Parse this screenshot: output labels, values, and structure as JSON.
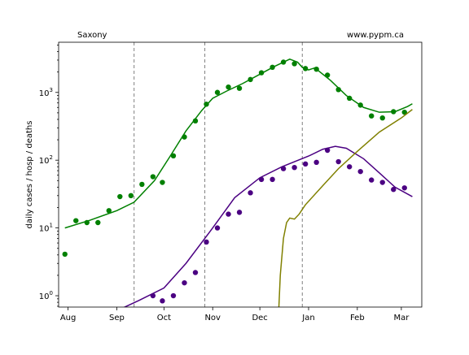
{
  "chart_data": {
    "type": "scatter",
    "title_left": "Saxony",
    "title_right": "www.pypm.ca",
    "ylabel": "daily cases / hosp / deaths",
    "xlabel": "",
    "y_scale": "log",
    "ylim": [
      0.68,
      5500
    ],
    "xlim": [
      "2020-07-26",
      "2021-03-14"
    ],
    "x_ticks": [
      {
        "date": "2020-08-01",
        "label": "Aug"
      },
      {
        "date": "2020-09-01",
        "label": "Sep"
      },
      {
        "date": "2020-10-01",
        "label": "Oct"
      },
      {
        "date": "2020-11-01",
        "label": "Nov"
      },
      {
        "date": "2020-12-01",
        "label": "Dec"
      },
      {
        "date": "2021-01-01",
        "label": "Jan"
      },
      {
        "date": "2021-02-01",
        "label": "Feb"
      },
      {
        "date": "2021-03-01",
        "label": "Mar"
      }
    ],
    "y_ticks": [
      {
        "value": 1,
        "label": "10^0"
      },
      {
        "value": 10,
        "label": "10^1"
      },
      {
        "value": 100,
        "label": "10^2"
      },
      {
        "value": 1000,
        "label": "10^3"
      }
    ],
    "vlines": [
      "2020-09-12",
      "2020-10-27",
      "2020-12-28"
    ],
    "grid": false,
    "series": [
      {
        "color": "#008000",
        "points": [
          [
            "2020-07-30",
            4.1
          ],
          [
            "2020-08-06",
            12.8
          ],
          [
            "2020-08-13",
            12.0
          ],
          [
            "2020-08-20",
            12.0
          ],
          [
            "2020-08-27",
            18.0
          ],
          [
            "2020-09-03",
            29.0
          ],
          [
            "2020-09-10",
            30.0
          ],
          [
            "2020-09-17",
            44.0
          ],
          [
            "2020-09-24",
            57.0
          ],
          [
            "2020-09-30",
            47.0
          ],
          [
            "2020-10-07",
            116.0
          ],
          [
            "2020-10-14",
            220.0
          ],
          [
            "2020-10-21",
            380.0
          ],
          [
            "2020-10-28",
            670.0
          ],
          [
            "2020-11-04",
            1000.0
          ],
          [
            "2020-11-11",
            1200.0
          ],
          [
            "2020-11-18",
            1150.0
          ],
          [
            "2020-11-25",
            1550.0
          ],
          [
            "2020-12-02",
            1950.0
          ],
          [
            "2020-12-09",
            2350.0
          ],
          [
            "2020-12-16",
            2800.0
          ],
          [
            "2020-12-23",
            2650.0
          ],
          [
            "2020-12-30",
            2250.0
          ],
          [
            "2021-01-06",
            2200.0
          ],
          [
            "2021-01-13",
            1800.0
          ],
          [
            "2021-01-20",
            1100.0
          ],
          [
            "2021-01-27",
            820.0
          ],
          [
            "2021-02-03",
            650.0
          ],
          [
            "2021-02-10",
            450.0
          ],
          [
            "2021-02-17",
            420.0
          ],
          [
            "2021-02-24",
            520.0
          ],
          [
            "2021-03-03",
            510.0
          ]
        ],
        "curve": [
          [
            "2020-07-30",
            10.0
          ],
          [
            "2020-08-15",
            13.0
          ],
          [
            "2020-09-01",
            18.0
          ],
          [
            "2020-09-12",
            24.0
          ],
          [
            "2020-09-25",
            50.0
          ],
          [
            "2020-10-05",
            115.0
          ],
          [
            "2020-10-15",
            270.0
          ],
          [
            "2020-10-25",
            540.0
          ],
          [
            "2020-11-01",
            820.0
          ],
          [
            "2020-11-10",
            1050.0
          ],
          [
            "2020-11-20",
            1350.0
          ],
          [
            "2020-12-01",
            1850.0
          ],
          [
            "2020-12-10",
            2400.0
          ],
          [
            "2020-12-20",
            3100.0
          ],
          [
            "2020-12-25",
            2800.0
          ],
          [
            "2020-12-28",
            2350.0
          ],
          [
            "2021-01-01",
            2150.0
          ],
          [
            "2021-01-05",
            2300.0
          ],
          [
            "2021-01-15",
            1500.0
          ],
          [
            "2021-01-25",
            900.0
          ],
          [
            "2021-02-05",
            600.0
          ],
          [
            "2021-02-15",
            510.0
          ],
          [
            "2021-02-25",
            520.0
          ],
          [
            "2021-03-05",
            620.0
          ],
          [
            "2021-03-08",
            680.0
          ]
        ]
      },
      {
        "color": "#4b0082",
        "points": [
          [
            "2020-09-24",
            1.0
          ],
          [
            "2020-09-30",
            0.84
          ],
          [
            "2020-10-07",
            1.0
          ],
          [
            "2020-10-14",
            1.55
          ],
          [
            "2020-10-21",
            2.2
          ],
          [
            "2020-10-28",
            6.2
          ],
          [
            "2020-11-04",
            10.0
          ],
          [
            "2020-11-11",
            16.0
          ],
          [
            "2020-11-18",
            17.0
          ],
          [
            "2020-11-25",
            33.0
          ],
          [
            "2020-12-02",
            52.0
          ],
          [
            "2020-12-09",
            52.0
          ],
          [
            "2020-12-16",
            75.0
          ],
          [
            "2020-12-23",
            78.0
          ],
          [
            "2020-12-30",
            88.0
          ],
          [
            "2021-01-06",
            93.0
          ],
          [
            "2021-01-13",
            140.0
          ],
          [
            "2021-01-20",
            95.0
          ],
          [
            "2021-01-27",
            80.0
          ],
          [
            "2021-02-03",
            68.0
          ],
          [
            "2021-02-10",
            51.0
          ],
          [
            "2021-02-17",
            47.0
          ],
          [
            "2021-02-24",
            37.0
          ],
          [
            "2021-03-03",
            39.0
          ]
        ],
        "curve": [
          [
            "2020-09-01",
            0.6
          ],
          [
            "2020-09-15",
            0.85
          ],
          [
            "2020-10-01",
            1.3
          ],
          [
            "2020-10-15",
            3.0
          ],
          [
            "2020-11-01",
            10.0
          ],
          [
            "2020-11-15",
            28.0
          ],
          [
            "2020-12-01",
            55.0
          ],
          [
            "2020-12-15",
            80.0
          ],
          [
            "2021-01-01",
            115.0
          ],
          [
            "2021-01-10",
            145.0
          ],
          [
            "2021-01-18",
            160.0
          ],
          [
            "2021-01-25",
            150.0
          ],
          [
            "2021-02-05",
            105.0
          ],
          [
            "2021-02-15",
            65.0
          ],
          [
            "2021-02-25",
            40.0
          ],
          [
            "2021-03-08",
            29.0
          ]
        ]
      },
      {
        "color": "#808000",
        "points": [],
        "curve": [
          [
            "2020-12-13",
            0.6
          ],
          [
            "2020-12-14",
            2.0
          ],
          [
            "2020-12-16",
            7.0
          ],
          [
            "2020-12-18",
            12.0
          ],
          [
            "2020-12-20",
            14.0
          ],
          [
            "2020-12-23",
            13.5
          ],
          [
            "2020-12-26",
            16.0
          ],
          [
            "2020-12-30",
            22.0
          ],
          [
            "2021-01-10",
            42.0
          ],
          [
            "2021-01-20",
            75.0
          ],
          [
            "2021-02-01",
            135.0
          ],
          [
            "2021-02-15",
            260.0
          ],
          [
            "2021-03-01",
            420.0
          ],
          [
            "2021-03-08",
            560.0
          ]
        ]
      }
    ]
  }
}
